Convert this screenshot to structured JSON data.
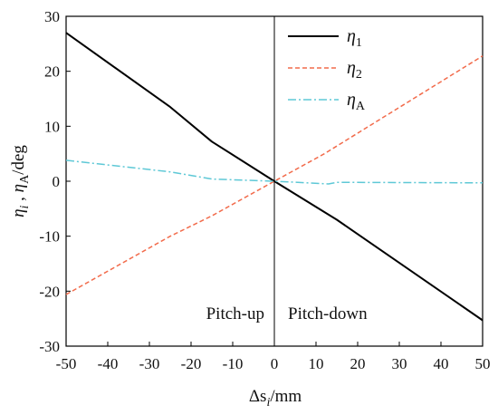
{
  "chart_data": {
    "type": "line",
    "title": "",
    "xlabel": {
      "main": "Δs",
      "sub": "i",
      "unit": "/mm"
    },
    "ylabel": {
      "part1": "η",
      "sub1": "i",
      "sep": " , ",
      "part2": "η",
      "sub2": "A",
      "unit": "/deg"
    },
    "xlim": [
      -50,
      50
    ],
    "ylim": [
      -30,
      30
    ],
    "x_ticks": [
      -50,
      -40,
      -30,
      -20,
      -10,
      0,
      10,
      20,
      30,
      40,
      50
    ],
    "y_ticks": [
      30,
      20,
      10,
      0,
      -10,
      -20,
      -30
    ],
    "x_tick_labels": [
      "-50",
      "-40",
      "-30",
      "-20",
      "-10",
      "0",
      "10",
      "20",
      "30",
      "40",
      "50"
    ],
    "y_tick_labels": [
      "30",
      "20",
      "10",
      "0",
      "-10",
      "-20",
      "-30"
    ],
    "grid": false,
    "legend_position": "top-right",
    "annotations": {
      "left": "Pitch-up",
      "right": "Pitch-down"
    },
    "series": [
      {
        "name": "η1",
        "name_main": "η",
        "name_sub": "1",
        "color": "#000000",
        "dash": "solid",
        "points": [
          [
            -50,
            27
          ],
          [
            -25,
            13.5
          ],
          [
            -15,
            7.2
          ],
          [
            0,
            0
          ],
          [
            15,
            -7
          ],
          [
            50,
            -25.3
          ]
        ]
      },
      {
        "name": "η2",
        "name_main": "η",
        "name_sub": "2",
        "color": "#f26b4b",
        "dash": "dashed",
        "points": [
          [
            -50,
            -20.6
          ],
          [
            -25,
            -10
          ],
          [
            -15,
            -6.3
          ],
          [
            0,
            0
          ],
          [
            12,
            5
          ],
          [
            50,
            22.8
          ]
        ]
      },
      {
        "name": "ηA",
        "name_main": "η",
        "name_sub": "A",
        "color": "#5ec8d6",
        "dash": "dashdot",
        "points": [
          [
            -50,
            3.8
          ],
          [
            -25,
            1.7
          ],
          [
            -15,
            0.4
          ],
          [
            0,
            0
          ],
          [
            13,
            -0.5
          ],
          [
            15,
            -0.2
          ],
          [
            50,
            -0.3
          ]
        ]
      }
    ]
  }
}
